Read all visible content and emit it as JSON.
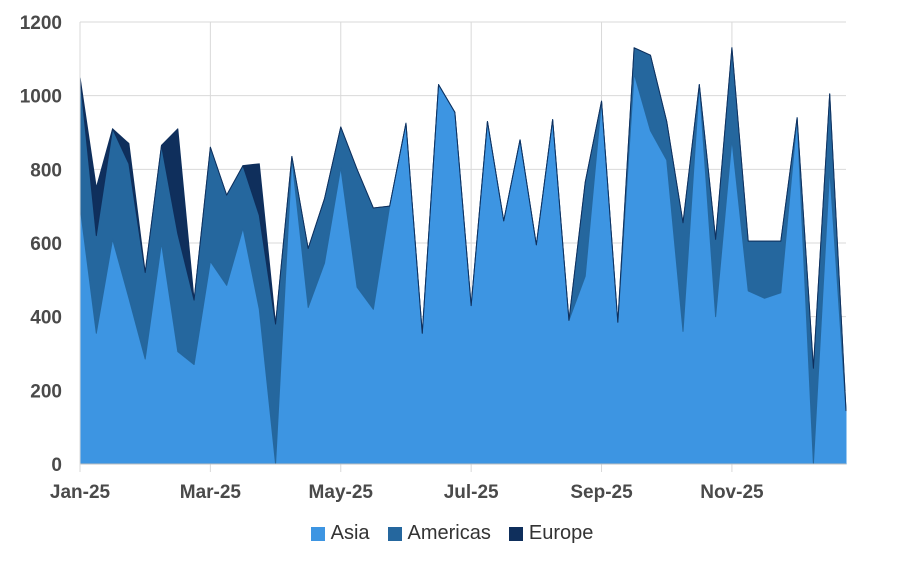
{
  "chart_data": {
    "type": "area",
    "stacked": true,
    "x_tick_labels": [
      "Jan-25",
      "Mar-25",
      "May-25",
      "Jul-25",
      "Sep-25",
      "Nov-25"
    ],
    "x_tick_index": [
      0,
      8,
      16,
      24,
      32,
      40
    ],
    "yticks": [
      0,
      200,
      400,
      600,
      800,
      1000,
      1200
    ],
    "ylim": [
      0,
      1200
    ],
    "grid": true,
    "legend_position": "bottom",
    "series": [
      {
        "name": "Asia",
        "color": "#3d95e2",
        "values": [
          700,
          355,
          610,
          450,
          285,
          600,
          305,
          270,
          550,
          485,
          640,
          420,
          0,
          830,
          425,
          545,
          805,
          480,
          420,
          700,
          925,
          355,
          1030,
          955,
          430,
          930,
          660,
          880,
          595,
          935,
          390,
          510,
          985,
          385,
          1060,
          905,
          825,
          360,
          1030,
          400,
          880,
          470,
          450,
          465,
          940,
          0,
          800,
          145
        ]
      },
      {
        "name": "Americas",
        "color": "#25679e",
        "values": [
          350,
          265,
          300,
          365,
          235,
          265,
          320,
          175,
          310,
          245,
          170,
          255,
          380,
          5,
          160,
          175,
          110,
          320,
          275,
          0,
          0,
          0,
          0,
          0,
          0,
          0,
          0,
          0,
          0,
          0,
          0,
          255,
          0,
          0,
          70,
          205,
          105,
          295,
          0,
          210,
          250,
          135,
          155,
          140,
          0,
          260,
          205,
          0
        ]
      },
      {
        "name": "Europe",
        "color": "#0f2f5c",
        "values": [
          0,
          130,
          0,
          55,
          0,
          0,
          285,
          0,
          0,
          0,
          0,
          140,
          0,
          0,
          0,
          0,
          0,
          0,
          0,
          0,
          0,
          0,
          0,
          0,
          0,
          0,
          0,
          0,
          0,
          0,
          0,
          0,
          0,
          0,
          0,
          0,
          0,
          0,
          0,
          0,
          0,
          0,
          0,
          0,
          0,
          0,
          0,
          0
        ]
      }
    ]
  }
}
